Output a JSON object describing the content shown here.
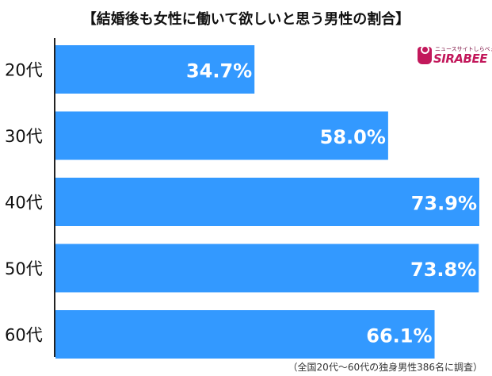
{
  "brand": {
    "tagline": "ニュースサイトしらべぇ",
    "name": "SIRABEE",
    "color": "#c2185b"
  },
  "colors": {
    "bar": "#3399ff",
    "value_label": "#ffffff",
    "axis": "#222222"
  },
  "footnote": "（全国20代～60代の独身男性386名に調査）",
  "chart_data": {
    "type": "bar",
    "orientation": "horizontal",
    "title": "【結婚後も女性に働いて欲しいと思う男性の割合】",
    "categories": [
      "20代",
      "30代",
      "40代",
      "50代",
      "60代"
    ],
    "values": [
      34.7,
      58.0,
      73.9,
      73.8,
      66.1
    ],
    "value_labels": [
      "34.7%",
      "58.0%",
      "73.9%",
      "73.8%",
      "66.1%"
    ],
    "xlim": [
      0,
      73.9
    ],
    "grid": false,
    "legend": "none"
  }
}
